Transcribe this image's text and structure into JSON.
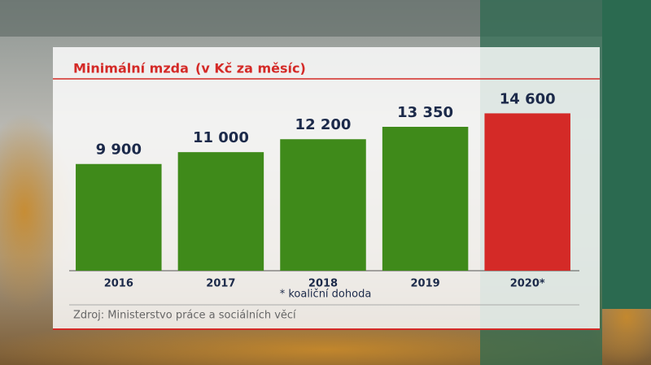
{
  "chart_data": {
    "type": "bar",
    "title": "Minimální mzda",
    "subtitle": "(v Kč za měsíc)",
    "categories": [
      "2016",
      "2017",
      "2018",
      "2019",
      "2020*"
    ],
    "values": [
      9900,
      11000,
      12200,
      13350,
      14600
    ],
    "value_labels": [
      "9 900",
      "11 000",
      "12 200",
      "13 350",
      "14 600"
    ],
    "colors": [
      "#3f8a1a",
      "#3f8a1a",
      "#3f8a1a",
      "#3f8a1a",
      "#d42a27"
    ],
    "ylim": [
      0,
      17800
    ],
    "note": "* koaliční dohoda",
    "source": "Zdroj: Ministerstvo práce a sociálních věcí"
  }
}
